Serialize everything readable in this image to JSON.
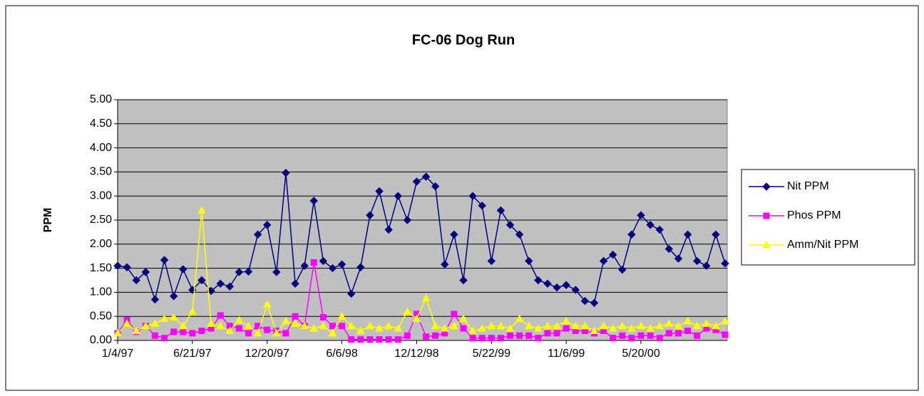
{
  "chart_data": {
    "type": "line",
    "title": "FC-06 Dog Run",
    "y_label": "PPM",
    "categories": [
      "1/4/97",
      null,
      null,
      null,
      null,
      null,
      null,
      null,
      "6/21/97",
      null,
      null,
      null,
      null,
      null,
      null,
      null,
      "12/20/97",
      null,
      null,
      null,
      null,
      null,
      null,
      null,
      "6/6/98",
      null,
      null,
      null,
      null,
      null,
      null,
      null,
      "12/12/98",
      null,
      null,
      null,
      null,
      null,
      null,
      null,
      "5/22/99",
      null,
      null,
      null,
      null,
      null,
      null,
      null,
      "11/6/99",
      null,
      null,
      null,
      null,
      null,
      null,
      null,
      "5/20/00",
      null,
      null,
      null,
      null,
      null,
      null,
      null,
      null,
      null
    ],
    "series": [
      {
        "name": "Nit PPM",
        "color": "#000080",
        "marker": "diamond",
        "values": [
          1.55,
          1.52,
          1.25,
          1.42,
          0.85,
          1.67,
          0.92,
          1.48,
          1.05,
          1.25,
          1.03,
          1.18,
          1.12,
          1.42,
          1.43,
          2.2,
          2.4,
          1.42,
          3.48,
          1.18,
          1.55,
          2.9,
          1.65,
          1.5,
          1.58,
          0.97,
          1.52,
          2.6,
          3.1,
          2.3,
          3.0,
          2.5,
          3.3,
          3.4,
          3.2,
          1.58,
          2.2,
          1.25,
          3.0,
          2.8,
          1.65,
          2.7,
          2.4,
          2.2,
          1.65,
          1.25,
          1.18,
          1.1,
          1.15,
          1.05,
          0.82,
          0.78,
          1.65,
          1.78,
          1.47,
          2.2,
          2.6,
          2.4,
          2.3,
          1.9,
          1.7,
          2.2,
          1.65,
          1.55,
          2.2,
          1.6
        ]
      },
      {
        "name": "Phos PPM",
        "color": "#ff00ff",
        "marker": "square",
        "values": [
          0.15,
          0.42,
          0.18,
          0.3,
          0.1,
          0.05,
          0.18,
          0.18,
          0.15,
          0.2,
          0.25,
          0.52,
          0.3,
          0.25,
          0.15,
          0.3,
          0.22,
          0.2,
          0.15,
          0.5,
          0.3,
          1.62,
          0.48,
          0.3,
          0.3,
          0.02,
          0.02,
          0.02,
          0.02,
          0.02,
          0.02,
          0.1,
          0.55,
          0.08,
          0.1,
          0.15,
          0.55,
          0.25,
          0.05,
          0.05,
          0.05,
          0.05,
          0.1,
          0.1,
          0.1,
          0.05,
          0.15,
          0.15,
          0.25,
          0.2,
          0.2,
          0.15,
          0.2,
          0.05,
          0.1,
          0.05,
          0.1,
          0.1,
          0.05,
          0.15,
          0.15,
          0.2,
          0.1,
          0.25,
          0.22,
          0.12
        ]
      },
      {
        "name": "Amm/Nit PPM",
        "color": "#ffff00",
        "marker": "triangle",
        "values": [
          0.15,
          0.35,
          0.2,
          0.3,
          0.35,
          0.45,
          0.48,
          0.3,
          0.6,
          2.7,
          0.35,
          0.3,
          0.2,
          0.42,
          0.3,
          0.15,
          0.75,
          0.15,
          0.4,
          0.35,
          0.3,
          0.25,
          0.3,
          0.15,
          0.5,
          0.3,
          0.2,
          0.3,
          0.25,
          0.3,
          0.25,
          0.6,
          0.45,
          0.88,
          0.3,
          0.25,
          0.3,
          0.45,
          0.2,
          0.25,
          0.3,
          0.3,
          0.25,
          0.45,
          0.3,
          0.25,
          0.3,
          0.3,
          0.4,
          0.3,
          0.3,
          0.2,
          0.3,
          0.25,
          0.3,
          0.25,
          0.3,
          0.25,
          0.3,
          0.35,
          0.3,
          0.4,
          0.3,
          0.35,
          0.3,
          0.4
        ]
      }
    ],
    "ylim": [
      0,
      5
    ],
    "yticks": [
      {
        "value": 0,
        "label": "0.00"
      },
      {
        "value": 0.5,
        "label": "0.50"
      },
      {
        "value": 1,
        "label": "1.00"
      },
      {
        "value": 1.5,
        "label": "1.50"
      },
      {
        "value": 2,
        "label": "2.00"
      },
      {
        "value": 2.5,
        "label": "2.50"
      },
      {
        "value": 3,
        "label": "3.00"
      },
      {
        "value": 3.5,
        "label": "3.50"
      },
      {
        "value": 4,
        "label": "4.00"
      },
      {
        "value": 4.5,
        "label": "4.50"
      },
      {
        "value": 5,
        "label": "5.00"
      }
    ],
    "grid": true,
    "plot_background": "#c0c0c0",
    "legend": "right"
  }
}
